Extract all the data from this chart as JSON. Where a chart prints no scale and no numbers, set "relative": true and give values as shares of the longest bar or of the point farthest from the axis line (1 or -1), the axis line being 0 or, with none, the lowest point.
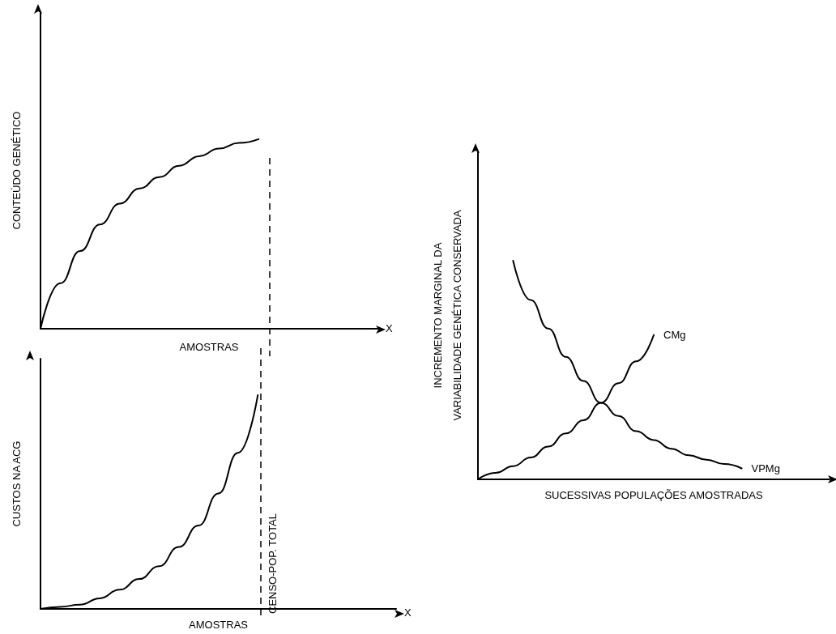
{
  "chart_data": [
    {
      "type": "line",
      "relative": true,
      "ylabel": "CONTEÚDO GENÉTICO",
      "xlabel": "AMOSTRAS",
      "annotations": [
        "X"
      ],
      "categories": [
        null,
        null,
        null,
        null,
        null,
        null,
        null,
        null,
        null,
        null,
        null,
        null,
        null,
        null,
        null,
        null,
        null,
        null
      ],
      "series": [
        {
          "color": "#000000",
          "values": [
            0,
            0.24,
            0.41,
            0.55,
            0.66,
            0.74,
            0.8,
            0.86,
            0.91,
            0.95,
            0.98,
            1,
            null,
            null,
            null,
            null,
            null,
            null
          ]
        }
      ],
      "grid": false,
      "legend": false,
      "marker": "none",
      "line_style": "solid"
    },
    {
      "type": "line",
      "relative": true,
      "ylabel": "CUSTOS NA ACG",
      "xlabel": "AMOSTRAS",
      "annotations": [
        "X",
        "CENSO-POP. TOTAL"
      ],
      "categories": [
        null,
        null,
        null,
        null,
        null,
        null,
        null,
        null,
        null,
        null,
        null,
        null,
        null,
        null,
        null,
        null,
        null,
        null,
        null
      ],
      "series": [
        {
          "color": "#000000",
          "values": [
            0,
            0.01,
            0.02,
            0.05,
            0.09,
            0.14,
            0.2,
            0.29,
            0.39,
            0.54,
            0.73,
            1,
            null,
            null,
            null,
            null,
            null,
            null,
            null
          ]
        }
      ],
      "grid": false,
      "legend": false,
      "marker": "none",
      "line_style": "solid"
    },
    {
      "type": "line",
      "relative": true,
      "ylabel": "INCREMENTO MARGINAL DA\nVARIABILIDADE GENÉTICA CONSERVADA",
      "xlabel": "SUCESSIVAS POPULAÇÕES AMOSTRADAS",
      "categories": [
        null,
        null,
        null,
        null,
        null,
        null,
        null,
        null,
        null,
        null,
        null,
        null,
        null,
        null,
        null,
        null,
        null,
        null,
        null,
        null,
        null
      ],
      "series": [
        {
          "name": "CMg",
          "color": "#000000",
          "values": [
            0,
            0.03,
            0.06,
            0.1,
            0.15,
            0.21,
            0.27,
            0.35,
            0.44,
            0.54,
            0.66,
            null,
            null,
            null,
            null,
            null,
            null,
            null,
            null,
            null,
            null
          ]
        },
        {
          "name": "VPMg",
          "color": "#000000",
          "values": [
            null,
            null,
            1,
            0.82,
            0.69,
            0.56,
            0.45,
            0.35,
            0.29,
            0.22,
            0.18,
            0.14,
            0.11,
            0.09,
            0.07,
            0.05,
            null,
            null,
            null,
            null,
            null
          ]
        }
      ],
      "grid": false,
      "legend": false,
      "marker": "none",
      "line_style": "solid"
    }
  ]
}
